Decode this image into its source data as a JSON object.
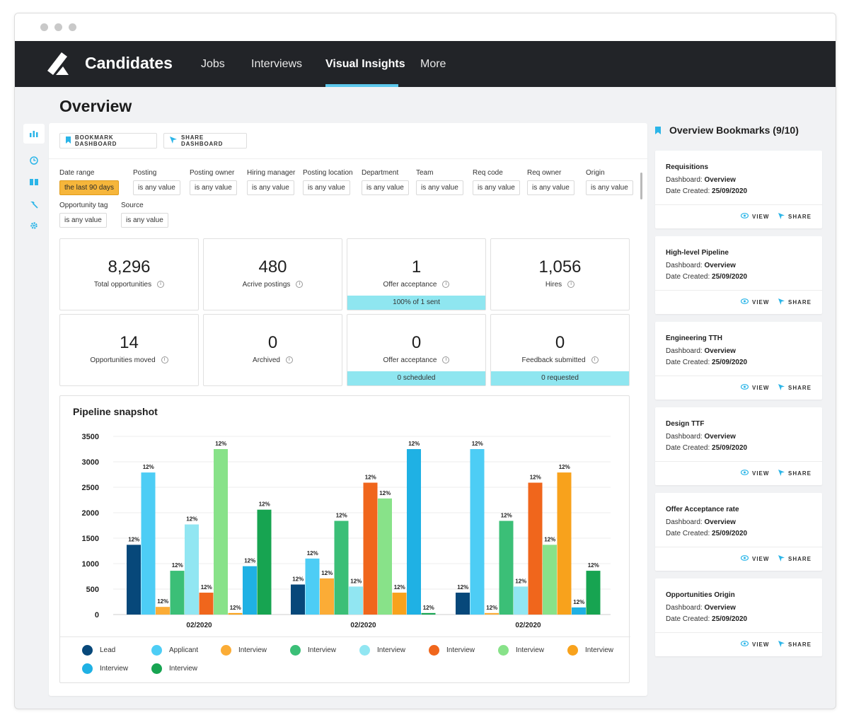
{
  "window": {
    "controls": [
      "close",
      "minimize",
      "maximize"
    ]
  },
  "nav": {
    "brand": "Candidates",
    "items": [
      {
        "label": "Jobs",
        "active": false
      },
      {
        "label": "Interviews",
        "active": false
      },
      {
        "label": "Visual Insights",
        "active": true
      },
      {
        "label": "More",
        "active": false
      }
    ]
  },
  "page": {
    "title": "Overview"
  },
  "sidebar": {
    "icons": [
      "bar-chart-icon",
      "clock-icon",
      "book-icon",
      "hammer-icon",
      "gear-icon"
    ]
  },
  "toolbar": {
    "bookmark_label": "BOOKMARK DASHBOARD",
    "share_label": "SHARE DASHBOARD"
  },
  "filters": [
    {
      "label": "Date range",
      "value": "the last 90 days",
      "highlight": true
    },
    {
      "label": "Posting",
      "value": "is any value"
    },
    {
      "label": "Posting owner",
      "value": "is any value"
    },
    {
      "label": "Hiring manager",
      "value": "is any value"
    },
    {
      "label": "Posting location",
      "value": "is any value"
    },
    {
      "label": "Department",
      "value": "is any value"
    },
    {
      "label": "Team",
      "value": "is any value"
    },
    {
      "label": "Req code",
      "value": "is any value"
    },
    {
      "label": "Req owner",
      "value": "is any value"
    },
    {
      "label": "Origin",
      "value": "is any value"
    },
    {
      "label": "Opportunity tag",
      "value": "is any value"
    },
    {
      "label": "Source",
      "value": "is any value"
    }
  ],
  "kpis": [
    {
      "value": "8,296",
      "label": "Total opportunities",
      "info": "i",
      "footer": ""
    },
    {
      "value": "480",
      "label": "Acrive postings",
      "info": "i",
      "footer": ""
    },
    {
      "value": "1",
      "label": "Offer acceptance",
      "info": "i",
      "footer": "100% of 1 sent"
    },
    {
      "value": "1,056",
      "label": "Hires",
      "info": "i",
      "footer": ""
    },
    {
      "value": "14",
      "label": "Opportunities moved",
      "info": "i",
      "footer": ""
    },
    {
      "value": "0",
      "label": "Archived",
      "info": "i",
      "footer": ""
    },
    {
      "value": "0",
      "label": "Offer acceptance",
      "info": "i",
      "footer": "0 scheduled"
    },
    {
      "value": "0",
      "label": "Feedback submitted",
      "info": "i",
      "footer": "0 requested"
    }
  ],
  "chart_data": {
    "type": "bar",
    "title": "Pipeline snapshot",
    "categories": [
      "02/2020",
      "02/2020",
      "02/2020"
    ],
    "ylim": [
      0,
      3500
    ],
    "yticks": [
      0,
      500,
      1000,
      1500,
      2000,
      2500,
      3000,
      3500
    ],
    "grid": true,
    "legend_position": "bottom",
    "bar_label": "12%",
    "series": [
      {
        "name": "Lead",
        "color": "#07487a",
        "values": [
          1370,
          590,
          430
        ]
      },
      {
        "name": "Applicant",
        "color": "#4dcdf5",
        "values": [
          2790,
          1100,
          3250
        ]
      },
      {
        "name": "Interview",
        "color": "#fbac36",
        "values": [
          150,
          710,
          30
        ]
      },
      {
        "name": "Interview",
        "color": "#3bbf77",
        "values": [
          860,
          1840,
          1840
        ]
      },
      {
        "name": "Interview",
        "color": "#91e6f2",
        "values": [
          1770,
          550,
          550
        ]
      },
      {
        "name": "Interview",
        "color": "#f0661c",
        "values": [
          430,
          2590,
          2590
        ]
      },
      {
        "name": "Interview",
        "color": "#88e289",
        "values": [
          3250,
          2280,
          1370
        ]
      },
      {
        "name": "Interview",
        "color": "#f8a21c",
        "values": [
          30,
          430,
          2790
        ]
      },
      {
        "name": "Interview",
        "color": "#1fb1e4",
        "values": [
          950,
          3250,
          140
        ]
      },
      {
        "name": "Interview",
        "color": "#17a451",
        "values": [
          2060,
          30,
          860
        ]
      }
    ]
  },
  "bookmarks": {
    "title": "Overview Bookmarks (9/10)",
    "dashboard_label": "Dashboard:",
    "date_label": "Date Created:",
    "view_label": "VIEW",
    "share_label": "SHARE",
    "items": [
      {
        "name": "Requisitions",
        "dashboard": "Overview",
        "date": "25/09/2020"
      },
      {
        "name": "High-level Pipeline",
        "dashboard": "Overview",
        "date": "25/09/2020"
      },
      {
        "name": "Engineering TTH",
        "dashboard": "Overview",
        "date": "25/09/2020"
      },
      {
        "name": "Design TTF",
        "dashboard": "Overview",
        "date": "25/09/2020"
      },
      {
        "name": "Offer Acceptance rate",
        "dashboard": "Overview",
        "date": "25/09/2020"
      },
      {
        "name": "Opportunities Origin",
        "dashboard": "Overview",
        "date": "25/09/2020"
      }
    ]
  }
}
